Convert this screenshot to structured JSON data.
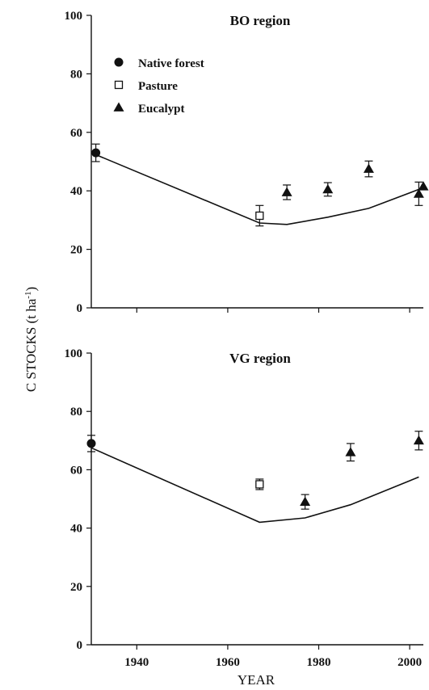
{
  "chart_data": [
    {
      "type": "scatter",
      "title": "BO region",
      "xlabel": "YEAR",
      "ylabel": "C STOCKS (t ha-1)",
      "xlim": [
        1930,
        2003
      ],
      "ylim": [
        0,
        100
      ],
      "yticks": [
        0,
        20,
        40,
        60,
        80,
        100
      ],
      "xticks": [
        1940,
        1960,
        1980,
        2000
      ],
      "legend": [
        "Native forest",
        "Pasture",
        "Eucalypt"
      ],
      "legend_position": "top-left",
      "model_line": {
        "x": [
          1930,
          1967,
          1973,
          1982,
          1991,
          2002
        ],
        "y": [
          53,
          29,
          28.5,
          31,
          34,
          40.5
        ]
      },
      "series": [
        {
          "name": "Native forest",
          "marker": "filled-circle",
          "points": [
            {
              "x": 1931,
              "y": 53,
              "err": 3
            }
          ]
        },
        {
          "name": "Pasture",
          "marker": "open-square",
          "points": [
            {
              "x": 1967,
              "y": 31.5,
              "err": 3.5
            }
          ]
        },
        {
          "name": "Eucalypt",
          "marker": "filled-triangle",
          "points": [
            {
              "x": 1973,
              "y": 39.5,
              "err": 2.5
            },
            {
              "x": 1982,
              "y": 40.5,
              "err": 2.3
            },
            {
              "x": 1991,
              "y": 47.5,
              "err": 2.7
            },
            {
              "x": 2002,
              "y": 39,
              "err": 4
            },
            {
              "x": 2003,
              "y": 41.5,
              "err": 0
            }
          ]
        }
      ]
    },
    {
      "type": "scatter",
      "title": "VG region",
      "xlabel": "YEAR",
      "ylabel": "C STOCKS (t ha-1)",
      "xlim": [
        1930,
        2003
      ],
      "ylim": [
        0,
        100
      ],
      "yticks": [
        0,
        20,
        40,
        60,
        80,
        100
      ],
      "xticks": [
        1940,
        1960,
        1980,
        2000
      ],
      "model_line": {
        "x": [
          1930,
          1967,
          1977,
          1987,
          2002
        ],
        "y": [
          67.5,
          42,
          43.5,
          48,
          57.5
        ]
      },
      "series": [
        {
          "name": "Native forest",
          "marker": "filled-circle",
          "points": [
            {
              "x": 1930,
              "y": 69,
              "err": 2.8
            }
          ]
        },
        {
          "name": "Pasture",
          "marker": "open-square",
          "points": [
            {
              "x": 1967,
              "y": 55,
              "err": 1.8
            }
          ]
        },
        {
          "name": "Eucalypt",
          "marker": "filled-triangle",
          "points": [
            {
              "x": 1977,
              "y": 49,
              "err": 2.5
            },
            {
              "x": 1987,
              "y": 66,
              "err": 3
            },
            {
              "x": 2002,
              "y": 70,
              "err": 3.2
            }
          ]
        }
      ]
    }
  ],
  "labels": {
    "xlabel": "YEAR",
    "ylabel_main": "C STOCKS (t ha",
    "ylabel_sup": "-1",
    "ylabel_close": ")"
  }
}
